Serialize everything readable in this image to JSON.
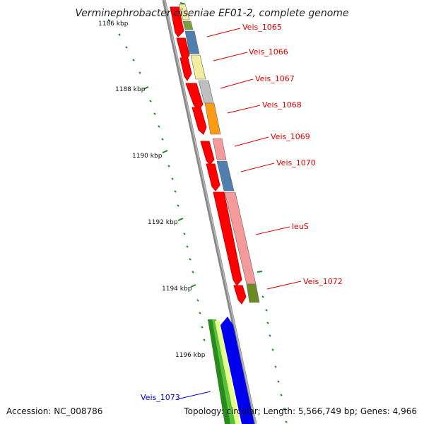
{
  "title": "Verminephrobacter eiseniae EF01-2, complete genome",
  "footer": {
    "accession": "Accession: NC_008786",
    "topology": "Topology: circular; Length: 5,566,749 bp; Genes: 4,966"
  },
  "colors": {
    "backbone": "#888888",
    "tick": "#1e8c1e",
    "label_red": "#dd0000",
    "label_blue": "#0000cc",
    "leader": "#e00000"
  },
  "kbp_labels": [
    "1186 kbp",
    "1188 kbp",
    "1190 kbp",
    "1192 kbp",
    "1194 kbp",
    "1196 kbp"
  ],
  "genes": [
    {
      "label": "Veis_1065",
      "color": "#e00000"
    },
    {
      "label": "Veis_1066",
      "color": "#e00000"
    },
    {
      "label": "Veis_1067",
      "color": "#e00000"
    },
    {
      "label": "Veis_1068",
      "color": "#e00000"
    },
    {
      "label": "Veis_1069",
      "color": "#e00000"
    },
    {
      "label": "Veis_1070",
      "color": "#e00000"
    },
    {
      "label": "leuS",
      "color": "#e00000"
    },
    {
      "label": "Veis_1072",
      "color": "#e00000"
    },
    {
      "label": "Veis_1073",
      "color": "#0000cc"
    }
  ]
}
